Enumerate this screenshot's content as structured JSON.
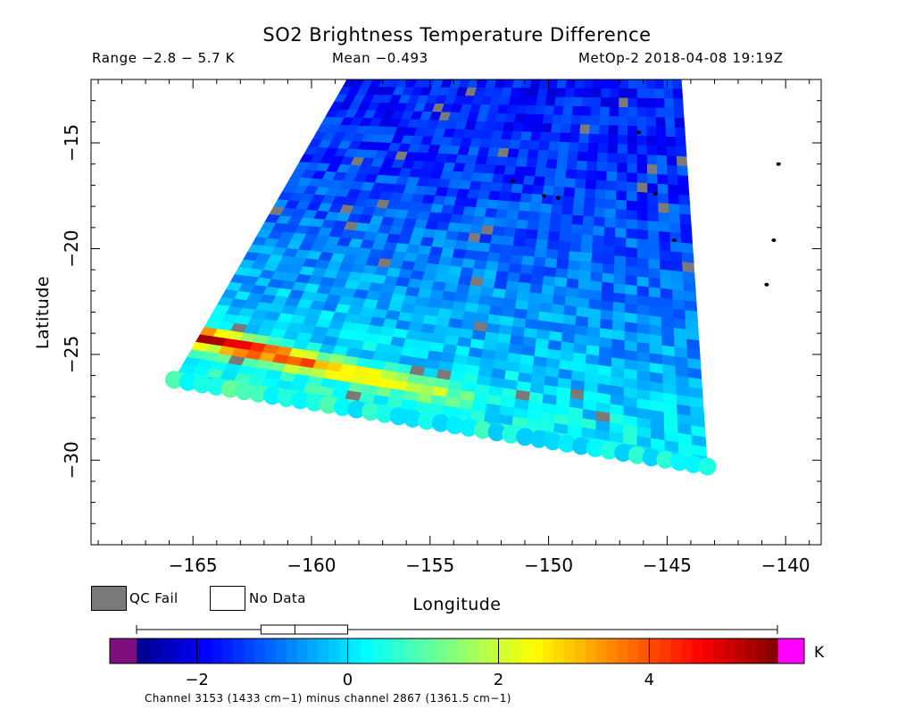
{
  "chart_data": {
    "type": "heatmap",
    "title": "SO2 Brightness Temperature Difference",
    "range_text": "Range −2.8 − 5.7 K",
    "mean_text": "Mean −0.493",
    "satellite_text": "MetOp-2 2018-04-08 19:19Z",
    "xlabel": "Longitude",
    "ylabel": "Latitude",
    "xlim": [
      -169.3,
      -138.5
    ],
    "ylim": [
      -34,
      -12
    ],
    "xticks": [
      -165,
      -160,
      -155,
      -150,
      -145,
      -140
    ],
    "xtick_labels": [
      "−165",
      "−160",
      "−155",
      "−150",
      "−145",
      "−140"
    ],
    "yticks": [
      -15,
      -20,
      -25,
      -30
    ],
    "ytick_labels": [
      "−15",
      "−20",
      "−25",
      "−30"
    ],
    "swath_corners": {
      "top_left": [
        -158.5,
        -12
      ],
      "top_right": [
        -144.4,
        -12
      ],
      "bottom_right": [
        -143.3,
        -30.3
      ],
      "bottom_left": [
        -165.8,
        -26.2
      ]
    },
    "swath_columns": 38,
    "swath_rows": 40,
    "values_description": "mostly −2 to 0 K (blue) across the swath, 0 to 1 K (cyan/light green) on the southern edge, SO2 plume 3 to 5.7 K along the south-west edge near −165 to −155 longitude, −24 to −27 latitude",
    "plume": {
      "start": [
        -165.2,
        -24.0
      ],
      "end": [
        -153.5,
        -27.2
      ],
      "peak_value": 5.4
    },
    "qc_fail_color": "#7a7a7a",
    "colorbar": {
      "min": -2.8,
      "max": 5.7,
      "ticks": [
        -2,
        0,
        2,
        4
      ],
      "tick_labels": [
        "−2",
        "0",
        "2",
        "4"
      ],
      "unit": "K",
      "under_color": "#7f0f7f",
      "over_color": "#ff00ff",
      "boxplot": {
        "min": -2.8,
        "q1": -1.15,
        "median": -0.7,
        "q3": 0.0,
        "max": 5.7
      }
    },
    "islands": [
      [
        -151.5,
        -16.8
      ],
      [
        -149.6,
        -17.6
      ],
      [
        -146.2,
        -14.5
      ],
      [
        -145.5,
        -17.4
      ],
      [
        -144.7,
        -19.6
      ],
      [
        -140.3,
        -16.0
      ],
      [
        -140.5,
        -19.6
      ],
      [
        -140.8,
        -21.7
      ],
      [
        -150.2,
        -17.5
      ]
    ]
  },
  "legend": {
    "qc_fail_label": "QC Fail",
    "no_data_label": "No Data"
  },
  "footer": {
    "channel_note": "Channel 3153 (1433 cm−1) minus channel 2867 (1361.5 cm−1)"
  }
}
